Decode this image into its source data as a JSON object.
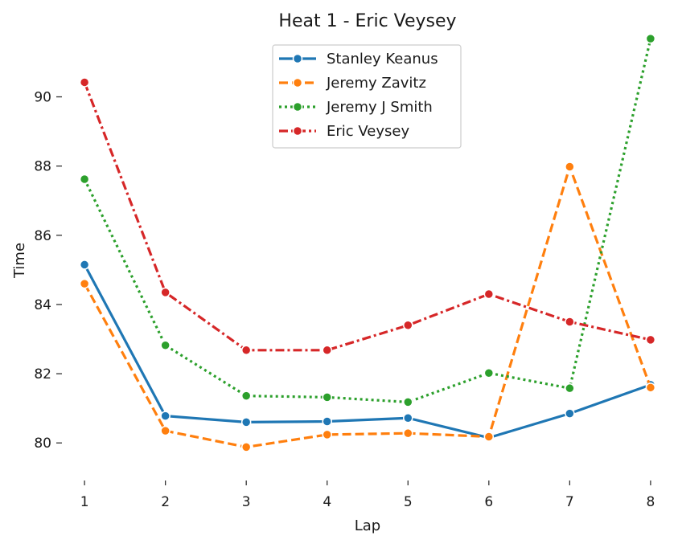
{
  "chart_data": {
    "type": "line",
    "title": "Heat 1 - Eric Veysey",
    "xlabel": "Lap",
    "ylabel": "Time",
    "x": [
      1,
      2,
      3,
      4,
      5,
      6,
      7,
      8
    ],
    "xlim": [
      0.8,
      8.2
    ],
    "ylim": [
      79.1,
      91.8
    ],
    "yticks": [
      80,
      82,
      84,
      86,
      88,
      90
    ],
    "grid": false,
    "legend_position": "top-center",
    "series": [
      {
        "name": "Stanley Keanus",
        "color": "#1f77b4",
        "dash": "solid",
        "values": [
          85.15,
          80.78,
          80.6,
          80.62,
          80.72,
          80.15,
          80.85,
          81.68
        ]
      },
      {
        "name": "Jeremy Zavitz",
        "color": "#ff7f0e",
        "dash": "dashed",
        "values": [
          84.6,
          80.35,
          79.88,
          80.24,
          80.28,
          80.18,
          87.98,
          81.6
        ]
      },
      {
        "name": "Jeremy J Smith",
        "color": "#2ca02c",
        "dash": "dotted",
        "values": [
          87.62,
          82.82,
          81.36,
          81.32,
          81.18,
          82.02,
          81.58,
          91.68
        ]
      },
      {
        "name": "Eric Veysey",
        "color": "#d62728",
        "dash": "dashdot",
        "values": [
          90.42,
          84.35,
          82.68,
          82.68,
          83.4,
          84.3,
          83.5,
          82.98
        ]
      }
    ]
  }
}
